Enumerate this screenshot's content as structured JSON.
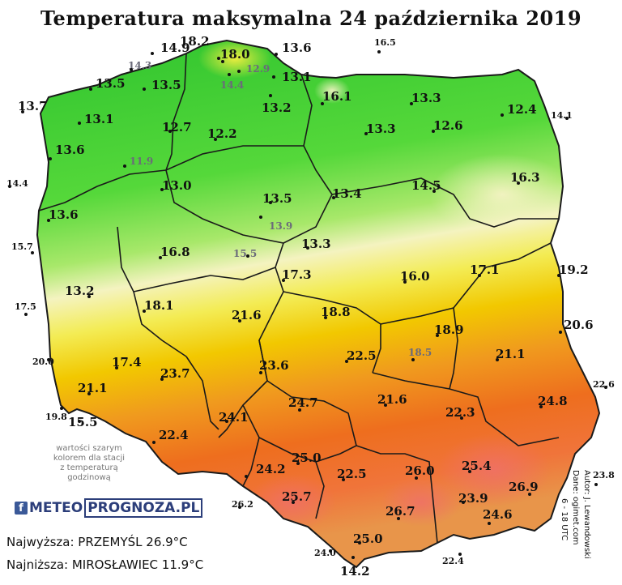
{
  "title": "Temperatura maksymalna 24 października 2019",
  "note_lines": [
    "wartości szarym",
    "kolorem dla stacji",
    "z temperaturą",
    "godzinową"
  ],
  "logo": {
    "part1": "METEO",
    "part2": "PROGNOZA.PL"
  },
  "stats": {
    "highest": "Najwyższa: PRZEMYŚL 26.9°C",
    "lowest": "Najniższa: MIROSŁAWIEC 11.9°C"
  },
  "credits": {
    "author": "Autor: J. Lewandowski",
    "data": "Dane: ogimet.com",
    "hours": "6 - 18 UTC"
  },
  "colors": {
    "cold": "#33cc33",
    "mild": "#f5f0a0",
    "warm": "#f2c300",
    "hot": "#ef6c1e"
  },
  "stations": [
    {
      "id": "s1",
      "value": "18.2",
      "gray": false
    },
    {
      "id": "s2",
      "value": "14.9",
      "gray": false
    },
    {
      "id": "s3",
      "value": "18.0",
      "gray": false
    },
    {
      "id": "s4",
      "value": "13.6",
      "gray": false
    },
    {
      "id": "s5",
      "value": "16.5",
      "gray": false
    },
    {
      "id": "s6",
      "value": "14.3",
      "gray": true
    },
    {
      "id": "s7",
      "value": "12.9",
      "gray": true
    },
    {
      "id": "s8",
      "value": "13.1",
      "gray": false
    },
    {
      "id": "s9",
      "value": "13.5",
      "gray": false
    },
    {
      "id": "s10",
      "value": "13.5",
      "gray": false
    },
    {
      "id": "s11",
      "value": "14.4",
      "gray": true
    },
    {
      "id": "s12",
      "value": "16.1",
      "gray": false
    },
    {
      "id": "s13",
      "value": "13.3",
      "gray": false
    },
    {
      "id": "s14",
      "value": "13.7",
      "gray": false
    },
    {
      "id": "s15",
      "value": "13.2",
      "gray": false
    },
    {
      "id": "s16",
      "value": "12.4",
      "gray": false
    },
    {
      "id": "s17",
      "value": "13.1",
      "gray": false
    },
    {
      "id": "s18",
      "value": "14.1",
      "gray": false
    },
    {
      "id": "s19",
      "value": "12.7",
      "gray": false
    },
    {
      "id": "s20",
      "value": "13.3",
      "gray": false
    },
    {
      "id": "s21",
      "value": "12.6",
      "gray": false
    },
    {
      "id": "s22",
      "value": "13.6",
      "gray": false
    },
    {
      "id": "s23",
      "value": "12.2",
      "gray": false
    },
    {
      "id": "s24",
      "value": "11.9",
      "gray": true
    },
    {
      "id": "s25",
      "value": "14.4",
      "gray": false
    },
    {
      "id": "s26",
      "value": "13.0",
      "gray": false
    },
    {
      "id": "s27",
      "value": "16.3",
      "gray": false
    },
    {
      "id": "s28",
      "value": "13.5",
      "gray": false
    },
    {
      "id": "s29",
      "value": "13.4",
      "gray": false
    },
    {
      "id": "s30",
      "value": "14.5",
      "gray": false
    },
    {
      "id": "s31",
      "value": "13.6",
      "gray": false
    },
    {
      "id": "s32",
      "value": "13.9",
      "gray": true
    },
    {
      "id": "s33",
      "value": "15.7",
      "gray": false
    },
    {
      "id": "s34",
      "value": "13.3",
      "gray": false
    },
    {
      "id": "s35",
      "value": "16.8",
      "gray": false
    },
    {
      "id": "s36",
      "value": "15.5",
      "gray": true
    },
    {
      "id": "s37",
      "value": "19.2",
      "gray": false
    },
    {
      "id": "s38",
      "value": "17.3",
      "gray": false
    },
    {
      "id": "s39",
      "value": "16.0",
      "gray": false
    },
    {
      "id": "s40",
      "value": "17.1",
      "gray": false
    },
    {
      "id": "s41",
      "value": "13.2",
      "gray": false
    },
    {
      "id": "s42",
      "value": "17.5",
      "gray": false
    },
    {
      "id": "s43",
      "value": "18.1",
      "gray": false
    },
    {
      "id": "s44",
      "value": "21.6",
      "gray": false
    },
    {
      "id": "s45",
      "value": "18.8",
      "gray": false
    },
    {
      "id": "s46",
      "value": "20.6",
      "gray": false
    },
    {
      "id": "s47",
      "value": "18.9",
      "gray": false
    },
    {
      "id": "s48",
      "value": "20.0",
      "gray": false
    },
    {
      "id": "s49",
      "value": "17.4",
      "gray": false
    },
    {
      "id": "s50",
      "value": "22.5",
      "gray": false
    },
    {
      "id": "s51",
      "value": "18.5",
      "gray": true
    },
    {
      "id": "s52",
      "value": "21.1",
      "gray": false
    },
    {
      "id": "s53",
      "value": "23.7",
      "gray": false
    },
    {
      "id": "s54",
      "value": "23.6",
      "gray": false
    },
    {
      "id": "s55",
      "value": "22.6",
      "gray": false
    },
    {
      "id": "s56",
      "value": "21.1",
      "gray": false
    },
    {
      "id": "s57",
      "value": "21.6",
      "gray": false
    },
    {
      "id": "s58",
      "value": "24.8",
      "gray": false
    },
    {
      "id": "s59",
      "value": "24.7",
      "gray": false
    },
    {
      "id": "s60",
      "value": "19.8",
      "gray": false
    },
    {
      "id": "s61",
      "value": "15.5",
      "gray": false
    },
    {
      "id": "s62",
      "value": "24.1",
      "gray": false
    },
    {
      "id": "s63",
      "value": "22.3",
      "gray": false
    },
    {
      "id": "s64",
      "value": "22.4",
      "gray": false
    },
    {
      "id": "s65",
      "value": "25.0",
      "gray": false
    },
    {
      "id": "s66",
      "value": "24.2",
      "gray": false
    },
    {
      "id": "s67",
      "value": "22.5",
      "gray": false
    },
    {
      "id": "s68",
      "value": "26.0",
      "gray": false
    },
    {
      "id": "s69",
      "value": "25.4",
      "gray": false
    },
    {
      "id": "s70",
      "value": "23.8",
      "gray": false
    },
    {
      "id": "s71",
      "value": "26.9",
      "gray": false
    },
    {
      "id": "s72",
      "value": "25.7",
      "gray": false
    },
    {
      "id": "s73",
      "value": "26.2",
      "gray": false
    },
    {
      "id": "s74",
      "value": "23.9",
      "gray": false
    },
    {
      "id": "s75",
      "value": "26.7",
      "gray": false
    },
    {
      "id": "s76",
      "value": "24.6",
      "gray": false
    },
    {
      "id": "s77",
      "value": "25.0",
      "gray": false
    },
    {
      "id": "s78",
      "value": "24.0",
      "gray": false
    },
    {
      "id": "s79",
      "value": "22.4",
      "gray": false
    },
    {
      "id": "s80",
      "value": "14.2",
      "gray": false
    }
  ]
}
